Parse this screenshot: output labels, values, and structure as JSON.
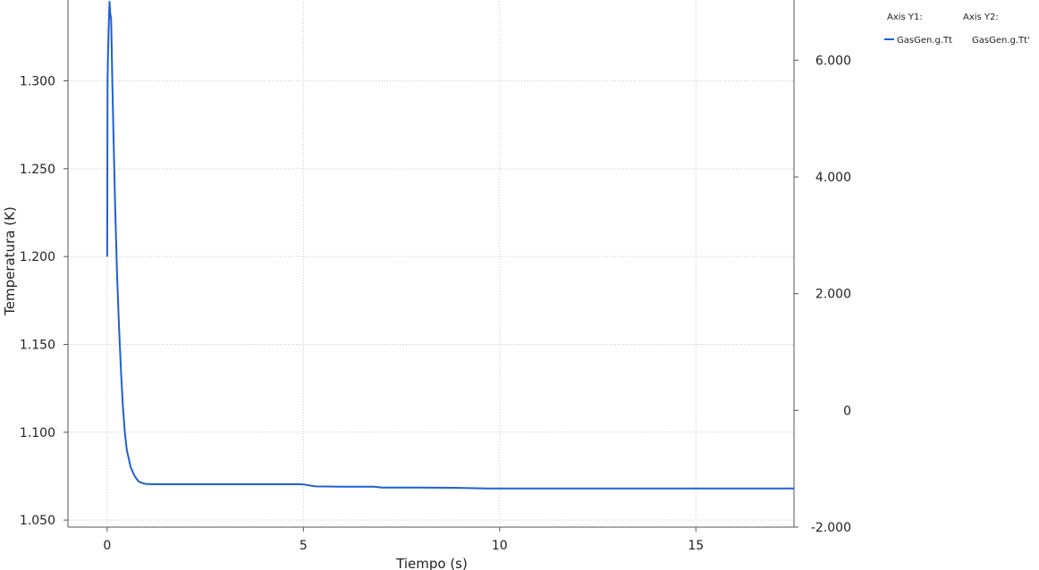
{
  "chart_data": {
    "type": "line",
    "xlabel": "Tiempo (s)",
    "ylabel": "Temperatura (K)",
    "xlim": [
      -1,
      17.5
    ],
    "ylim_left": [
      1.046,
      1.345
    ],
    "ylim_right": [
      -2000,
      7000
    ],
    "x_ticks": [
      0,
      5,
      10,
      15
    ],
    "x_tick_labels": [
      "0",
      "5",
      "10",
      "15"
    ],
    "y_left_ticks": [
      1.05,
      1.1,
      1.15,
      1.2,
      1.25,
      1.3
    ],
    "y_left_tick_labels": [
      "1.050",
      "1.100",
      "1.150",
      "1.200",
      "1.250",
      "1.300"
    ],
    "y_right_ticks": [
      -2000,
      0,
      2000,
      4000,
      6000
    ],
    "y_right_tick_labels": [
      "-2.000",
      "0",
      "2.000",
      "4.000",
      "6.000"
    ],
    "grid": true,
    "legend": {
      "placement": "right",
      "axis_y1_title": "Axis Y1:",
      "axis_y2_title": "Axis Y2:",
      "y1_entries": [
        "GasGen.g.Tt"
      ],
      "y2_entries": [
        "GasGen.g.Tt'"
      ]
    },
    "series": [
      {
        "name": "GasGen.g.Tt",
        "axis": "y1",
        "color": "#1f5fd6",
        "x": [
          0.0,
          0.01,
          0.02,
          0.04,
          0.06,
          0.08,
          0.1,
          0.13,
          0.16,
          0.2,
          0.25,
          0.3,
          0.35,
          0.4,
          0.45,
          0.5,
          0.6,
          0.7,
          0.8,
          0.9,
          1.0,
          1.2,
          1.5,
          2.0,
          3.0,
          4.0,
          4.9,
          5.0,
          5.3,
          6.0,
          6.8,
          7.0,
          8.0,
          9.0,
          9.7,
          10.0,
          11.0,
          12.0,
          13.0,
          14.0,
          15.0,
          16.0,
          17.0,
          17.5
        ],
        "values": [
          1.2,
          1.3,
          1.315,
          1.33,
          1.345,
          1.338,
          1.335,
          1.3,
          1.27,
          1.23,
          1.19,
          1.16,
          1.135,
          1.115,
          1.1,
          1.09,
          1.08,
          1.075,
          1.072,
          1.071,
          1.0705,
          1.0704,
          1.0704,
          1.0704,
          1.0704,
          1.0704,
          1.0704,
          1.0703,
          1.0692,
          1.069,
          1.069,
          1.0685,
          1.0685,
          1.0683,
          1.068,
          1.068,
          1.068,
          1.068,
          1.068,
          1.068,
          1.068,
          1.068,
          1.068,
          1.068
        ]
      }
    ]
  }
}
